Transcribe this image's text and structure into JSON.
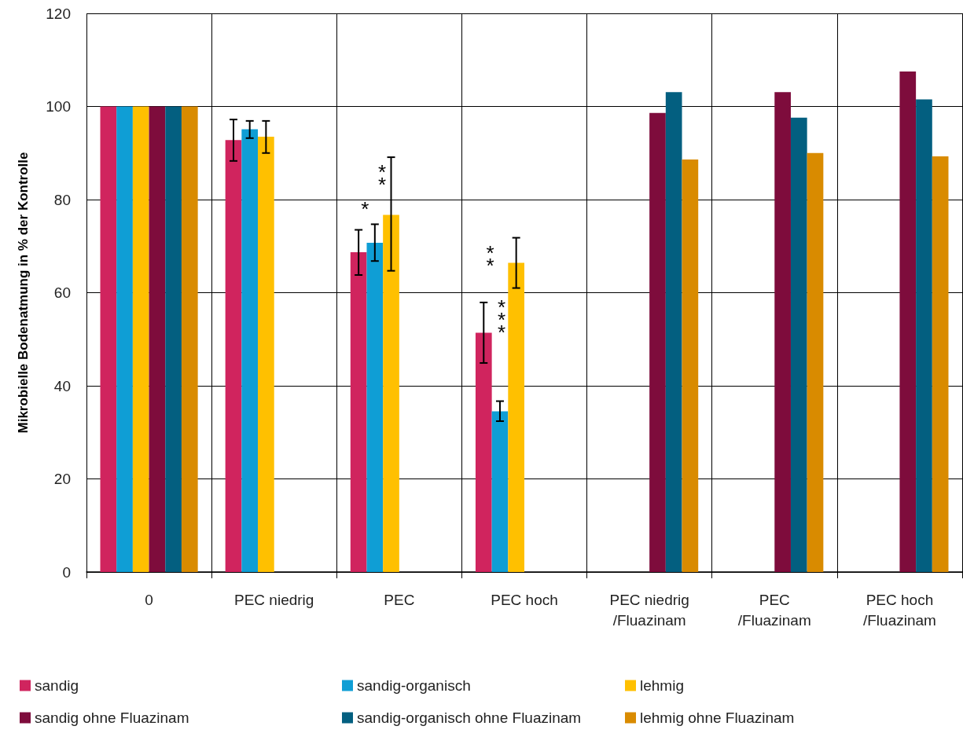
{
  "chart_data": {
    "type": "bar",
    "ylabel": "Mikrobielle Bodenatmung in % der Kontrolle",
    "categories": [
      "0",
      "PEC niedrig",
      "PEC",
      "PEC hoch",
      "PEC niedrig\n/Fluazinam",
      "PEC\n/Fluazinam",
      "PEC hoch\n/Fluazinam"
    ],
    "series": [
      {
        "name": "sandig",
        "color": "#d0245e",
        "values": [
          100,
          92.8,
          68.7,
          51.4,
          null,
          null,
          null
        ],
        "errors": [
          null,
          [
            88.3,
            97.2
          ],
          [
            63.8,
            73.5
          ],
          [
            44.9,
            57.9
          ],
          null,
          null,
          null
        ]
      },
      {
        "name": "sandig-organisch",
        "color": "#0f9ed5",
        "values": [
          100,
          95.1,
          70.7,
          34.5,
          null,
          null,
          null
        ],
        "errors": [
          null,
          [
            93.2,
            96.9
          ],
          [
            66.8,
            74.7
          ],
          [
            32.4,
            36.7
          ],
          null,
          null,
          null
        ]
      },
      {
        "name": "lehmig",
        "color": "#ffc000",
        "values": [
          100,
          93.5,
          76.7,
          66.4,
          null,
          null,
          null
        ],
        "errors": [
          null,
          [
            90.0,
            96.9
          ],
          [
            64.7,
            89.1
          ],
          [
            61.0,
            71.8
          ],
          null,
          null,
          null
        ]
      },
      {
        "name": "sandig ohne Fluazinam",
        "color": "#7e0c3c",
        "values": [
          100,
          null,
          null,
          null,
          98.6,
          103.1,
          107.5
        ]
      },
      {
        "name": "sandig-organisch ohne Fluazinam",
        "color": "#035f80",
        "values": [
          100,
          null,
          null,
          null,
          103.1,
          97.6,
          101.5
        ]
      },
      {
        "name": "lehmig ohne Fluazinam",
        "color": "#d98b00",
        "values": [
          100,
          null,
          null,
          null,
          88.6,
          90.0,
          89.3
        ]
      }
    ],
    "annotations": [
      "*",
      "**",
      "**",
      "***"
    ],
    "ylim": [
      0,
      120
    ],
    "yticks": [
      0,
      20,
      40,
      60,
      80,
      100,
      120
    ],
    "grid": true,
    "legend": "bottom"
  }
}
